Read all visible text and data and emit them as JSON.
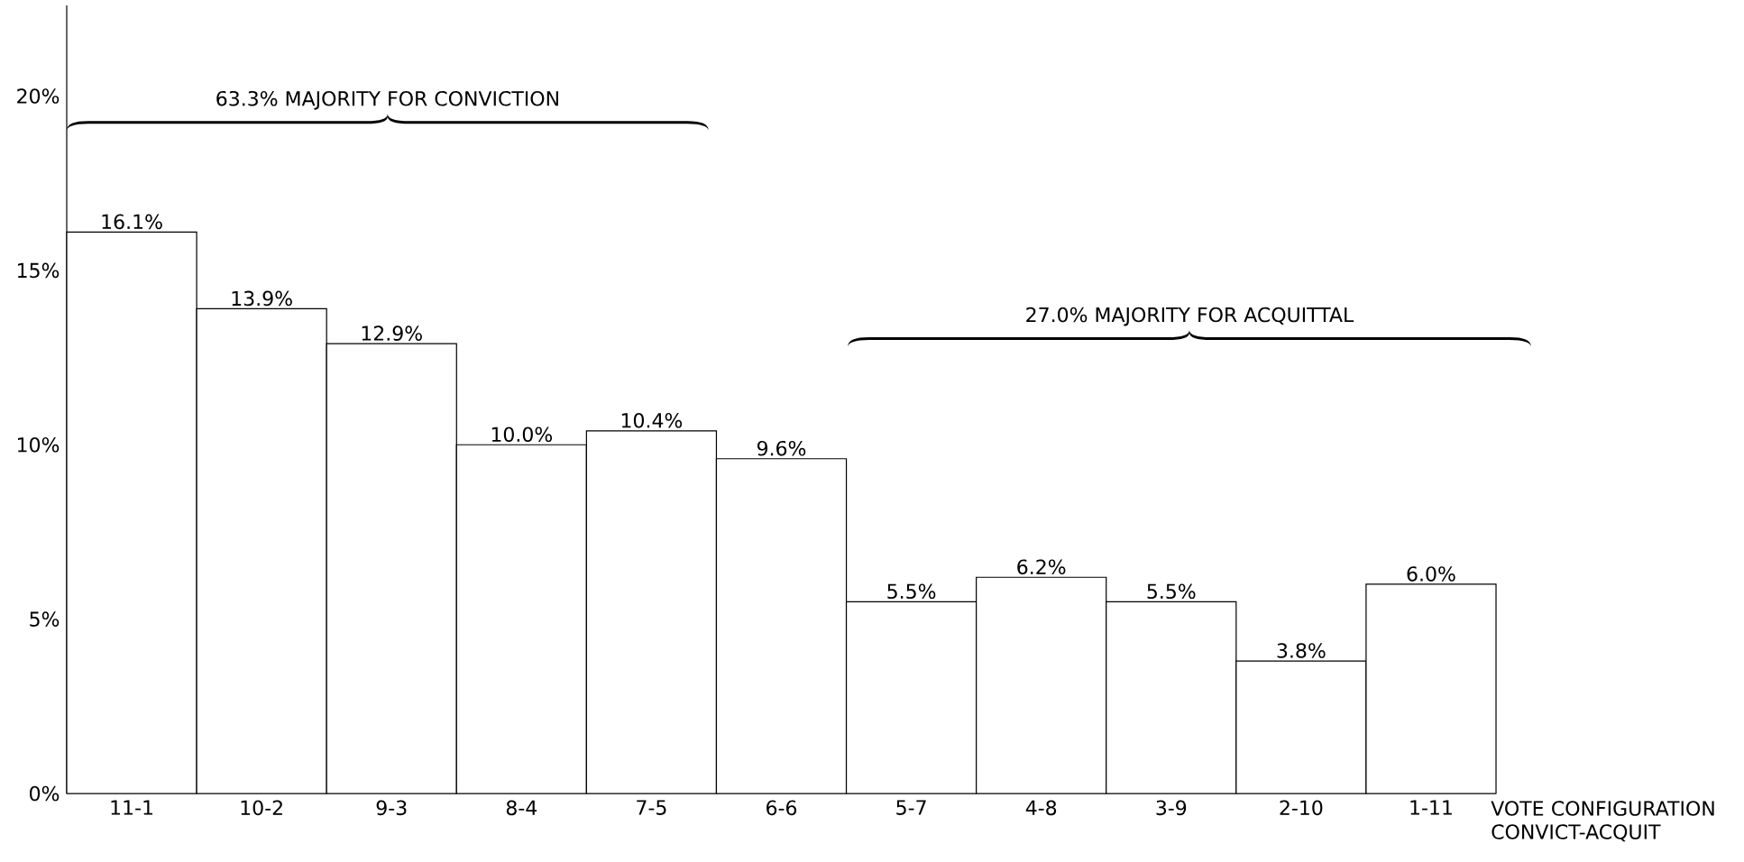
{
  "chart_data": {
    "type": "bar",
    "categories": [
      "11-1",
      "10-2",
      "9-3",
      "8-4",
      "7-5",
      "6-6",
      "5-7",
      "4-8",
      "3-9",
      "2-10",
      "1-11"
    ],
    "values": [
      16.1,
      13.9,
      12.9,
      10.0,
      10.4,
      9.6,
      5.5,
      6.2,
      5.5,
      3.8,
      6.0
    ],
    "value_labels": [
      "16.1%",
      "13.9%",
      "12.9%",
      "10.0%",
      "10.4%",
      "9.6%",
      "5.5%",
      "6.2%",
      "5.5%",
      "3.8%",
      "6.0%"
    ],
    "color": "#ffffff",
    "ylim": [
      0,
      22.6
    ],
    "yticks": [
      {
        "value": 0,
        "label": "0%"
      },
      {
        "value": 5,
        "label": "5%"
      },
      {
        "value": 10,
        "label": "10%"
      },
      {
        "value": 15,
        "label": "15%"
      },
      {
        "value": 20,
        "label": "20%"
      }
    ],
    "xlabel": "VOTE CONFIGURATION CONVICT-ACQUIT",
    "annotations": [
      "63.3% MAJORITY FOR CONVICTION",
      "27.0% MAJORITY FOR ACQUITTAL"
    ]
  }
}
